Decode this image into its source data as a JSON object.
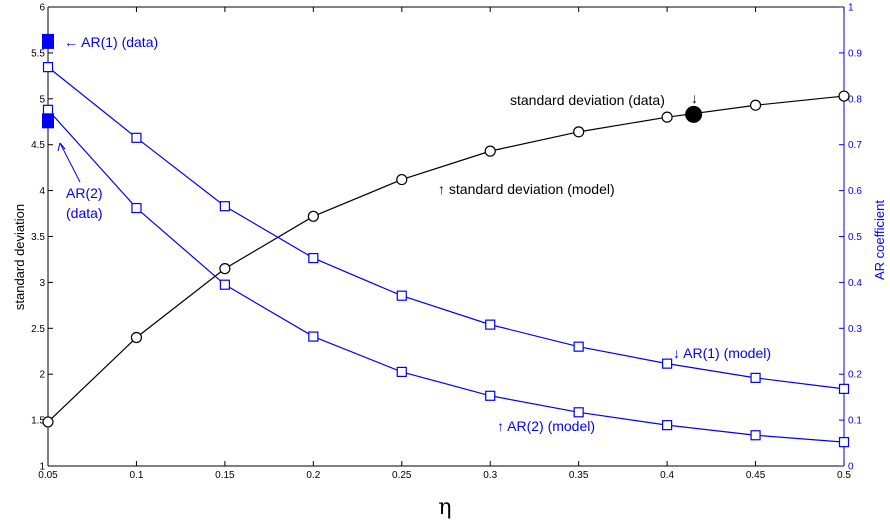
{
  "chart_data": {
    "type": "line",
    "xlabel": "η",
    "ylabel_left": "standard deviation",
    "ylabel_right": "AR coefficient",
    "x": [
      0.05,
      0.1,
      0.15,
      0.2,
      0.25,
      0.3,
      0.35,
      0.4,
      0.45,
      0.5
    ],
    "x_tick_labels": [
      "0.05",
      "0.1",
      "0.15",
      "0.2",
      "0.25",
      "0.3",
      "0.35",
      "0.4",
      "0.45",
      "0.5"
    ],
    "xlim": [
      0.05,
      0.5
    ],
    "ylim_left": [
      1,
      6
    ],
    "ylim_right": [
      0,
      1
    ],
    "y_left_tick_labels": [
      "1",
      "1.5",
      "2",
      "2.5",
      "3",
      "3.5",
      "4",
      "4.5",
      "5",
      "5.5",
      "6"
    ],
    "y_right_tick_labels": [
      "0",
      "0.1",
      "0.2",
      "0.3",
      "0.4",
      "0.5",
      "0.6",
      "0.7",
      "0.8",
      "0.9",
      "1"
    ],
    "series": [
      {
        "axis": "left",
        "color": "#000000",
        "marker": "circle",
        "values": [
          1.48,
          2.4,
          3.15,
          3.72,
          4.12,
          4.43,
          4.64,
          4.8,
          4.93,
          5.03
        ]
      },
      {
        "axis": "right",
        "color": "#0000ff",
        "marker": "square",
        "values": [
          0.869,
          0.715,
          0.566,
          0.453,
          0.371,
          0.308,
          0.26,
          0.223,
          0.192,
          0.168
        ]
      },
      {
        "axis": "right",
        "color": "#0000ff",
        "marker": "square",
        "values": [
          0.776,
          0.562,
          0.395,
          0.282,
          0.205,
          0.153,
          0.117,
          0.089,
          0.067,
          0.052
        ]
      }
    ],
    "data_points": [
      {
        "axis": "left",
        "x": 0.415,
        "y": 4.83,
        "marker": "filled-circle",
        "color": "#000000"
      },
      {
        "axis": "right",
        "x": 0.05,
        "y": 0.925,
        "marker": "filled-square",
        "color": "#0000ff"
      },
      {
        "axis": "right",
        "x": 0.05,
        "y": 0.752,
        "marker": "filled-square",
        "color": "#0000ff"
      }
    ],
    "annotations": {
      "ar1_data": "← AR(1) (data)",
      "sd_data": "standard deviation (data)",
      "sd_data_arrow": "↓",
      "sd_model": "↑ standard deviation (model)",
      "ar2_data_line1": "AR(2)",
      "ar2_data_line2": "(data)",
      "ar1_model": "↓ AR(1) (model)",
      "ar2_model": "↑ AR(2) (model)"
    },
    "grid": false,
    "colors": {
      "left_axis": "#000000",
      "right_axis": "#0000ff"
    }
  }
}
